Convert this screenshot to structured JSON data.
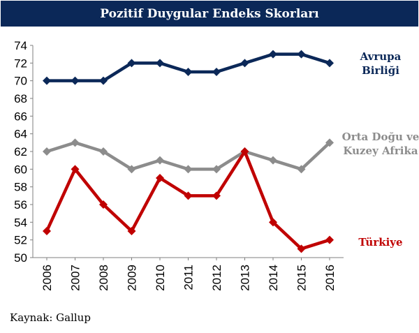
{
  "title": "Pozitif Duygular Endeks Skorları",
  "source": "Kaynak: Gallup",
  "chart_data": {
    "type": "line",
    "title": "Pozitif Duygular Endeks Skorları",
    "x": [
      "2006",
      "2007",
      "2008",
      "2009",
      "2010",
      "2011",
      "2012",
      "2013",
      "2014",
      "2015",
      "2016"
    ],
    "ylim": [
      50,
      74
    ],
    "yticks": [
      50,
      52,
      54,
      56,
      58,
      60,
      62,
      64,
      66,
      68,
      70,
      72,
      74
    ],
    "grid": false,
    "legend": "inline-right",
    "series": [
      {
        "name": "Avrupa Birliği",
        "label_lines": [
          "Avrupa",
          "Birliği"
        ],
        "color": "#0b2858",
        "values": [
          70,
          70,
          70,
          72,
          72,
          71,
          71,
          72,
          73,
          73,
          72
        ]
      },
      {
        "name": "Orta Doğu ve Kuzey Afrika",
        "label_lines": [
          "Orta Doğu ve",
          "Kuzey Afrika"
        ],
        "color": "#8c8c8c",
        "values": [
          62,
          63,
          62,
          60,
          61,
          60,
          60,
          62,
          61,
          60,
          63
        ]
      },
      {
        "name": "Türkiye",
        "label_lines": [
          "Türkiye"
        ],
        "color": "#c00000",
        "values": [
          53,
          60,
          56,
          53,
          59,
          57,
          57,
          62,
          54,
          51,
          52
        ]
      }
    ]
  }
}
